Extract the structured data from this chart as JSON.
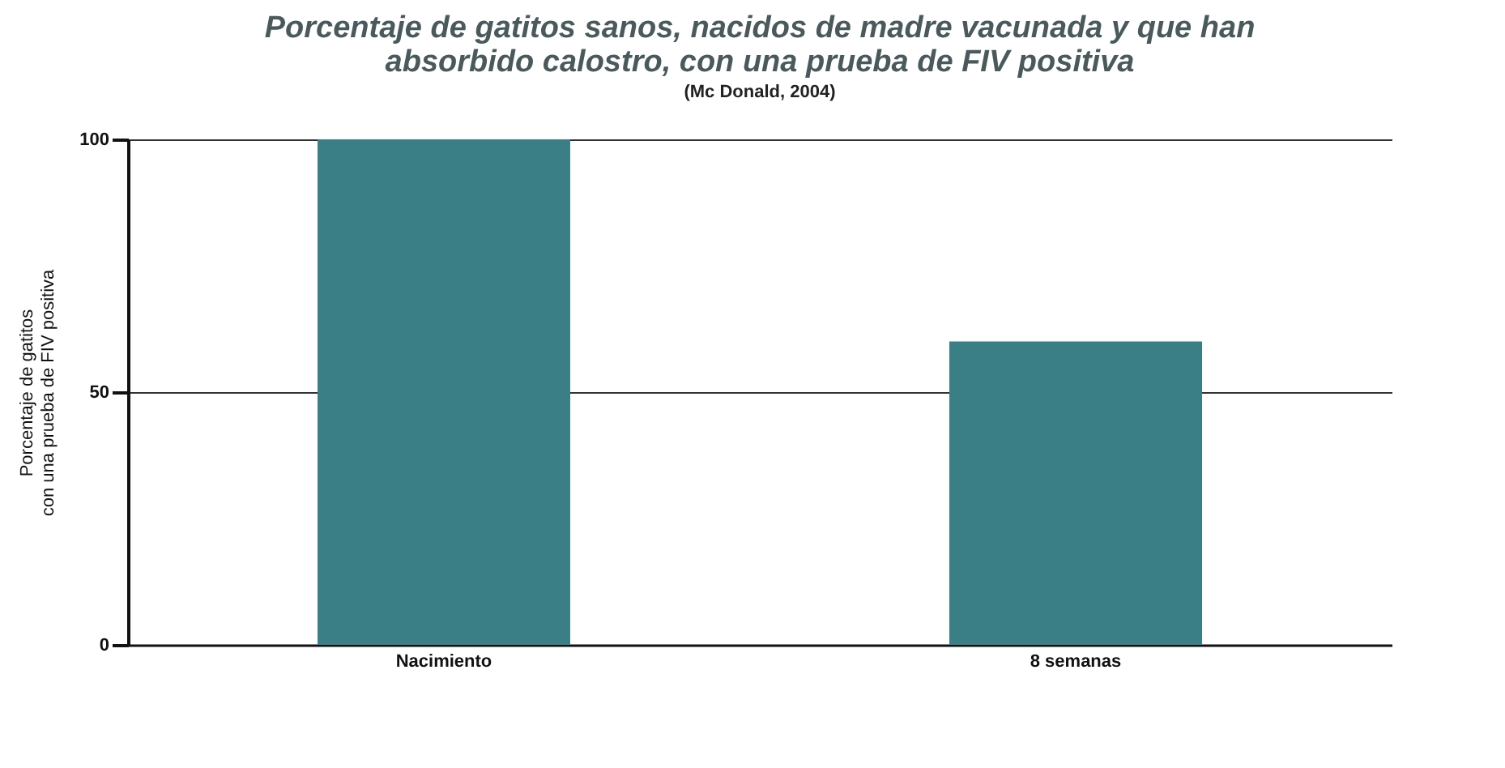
{
  "chart_data": {
    "type": "bar",
    "title": "Porcentaje de gatitos sanos, nacidos de madre vacunada y que han\nabsorbido calostro, con una prueba de FIV positiva",
    "subtitle": "(Mc Donald, 2004)",
    "ylabel": "Porcentaje de gatitos\ncon una prueba de FIV positiva",
    "categories": [
      "Nacimiento",
      "8 semanas"
    ],
    "values": [
      100,
      60
    ],
    "color": "#3b7f86",
    "ylim": [
      0,
      100
    ],
    "yticks": [
      0,
      50,
      100
    ],
    "grid": "y"
  }
}
